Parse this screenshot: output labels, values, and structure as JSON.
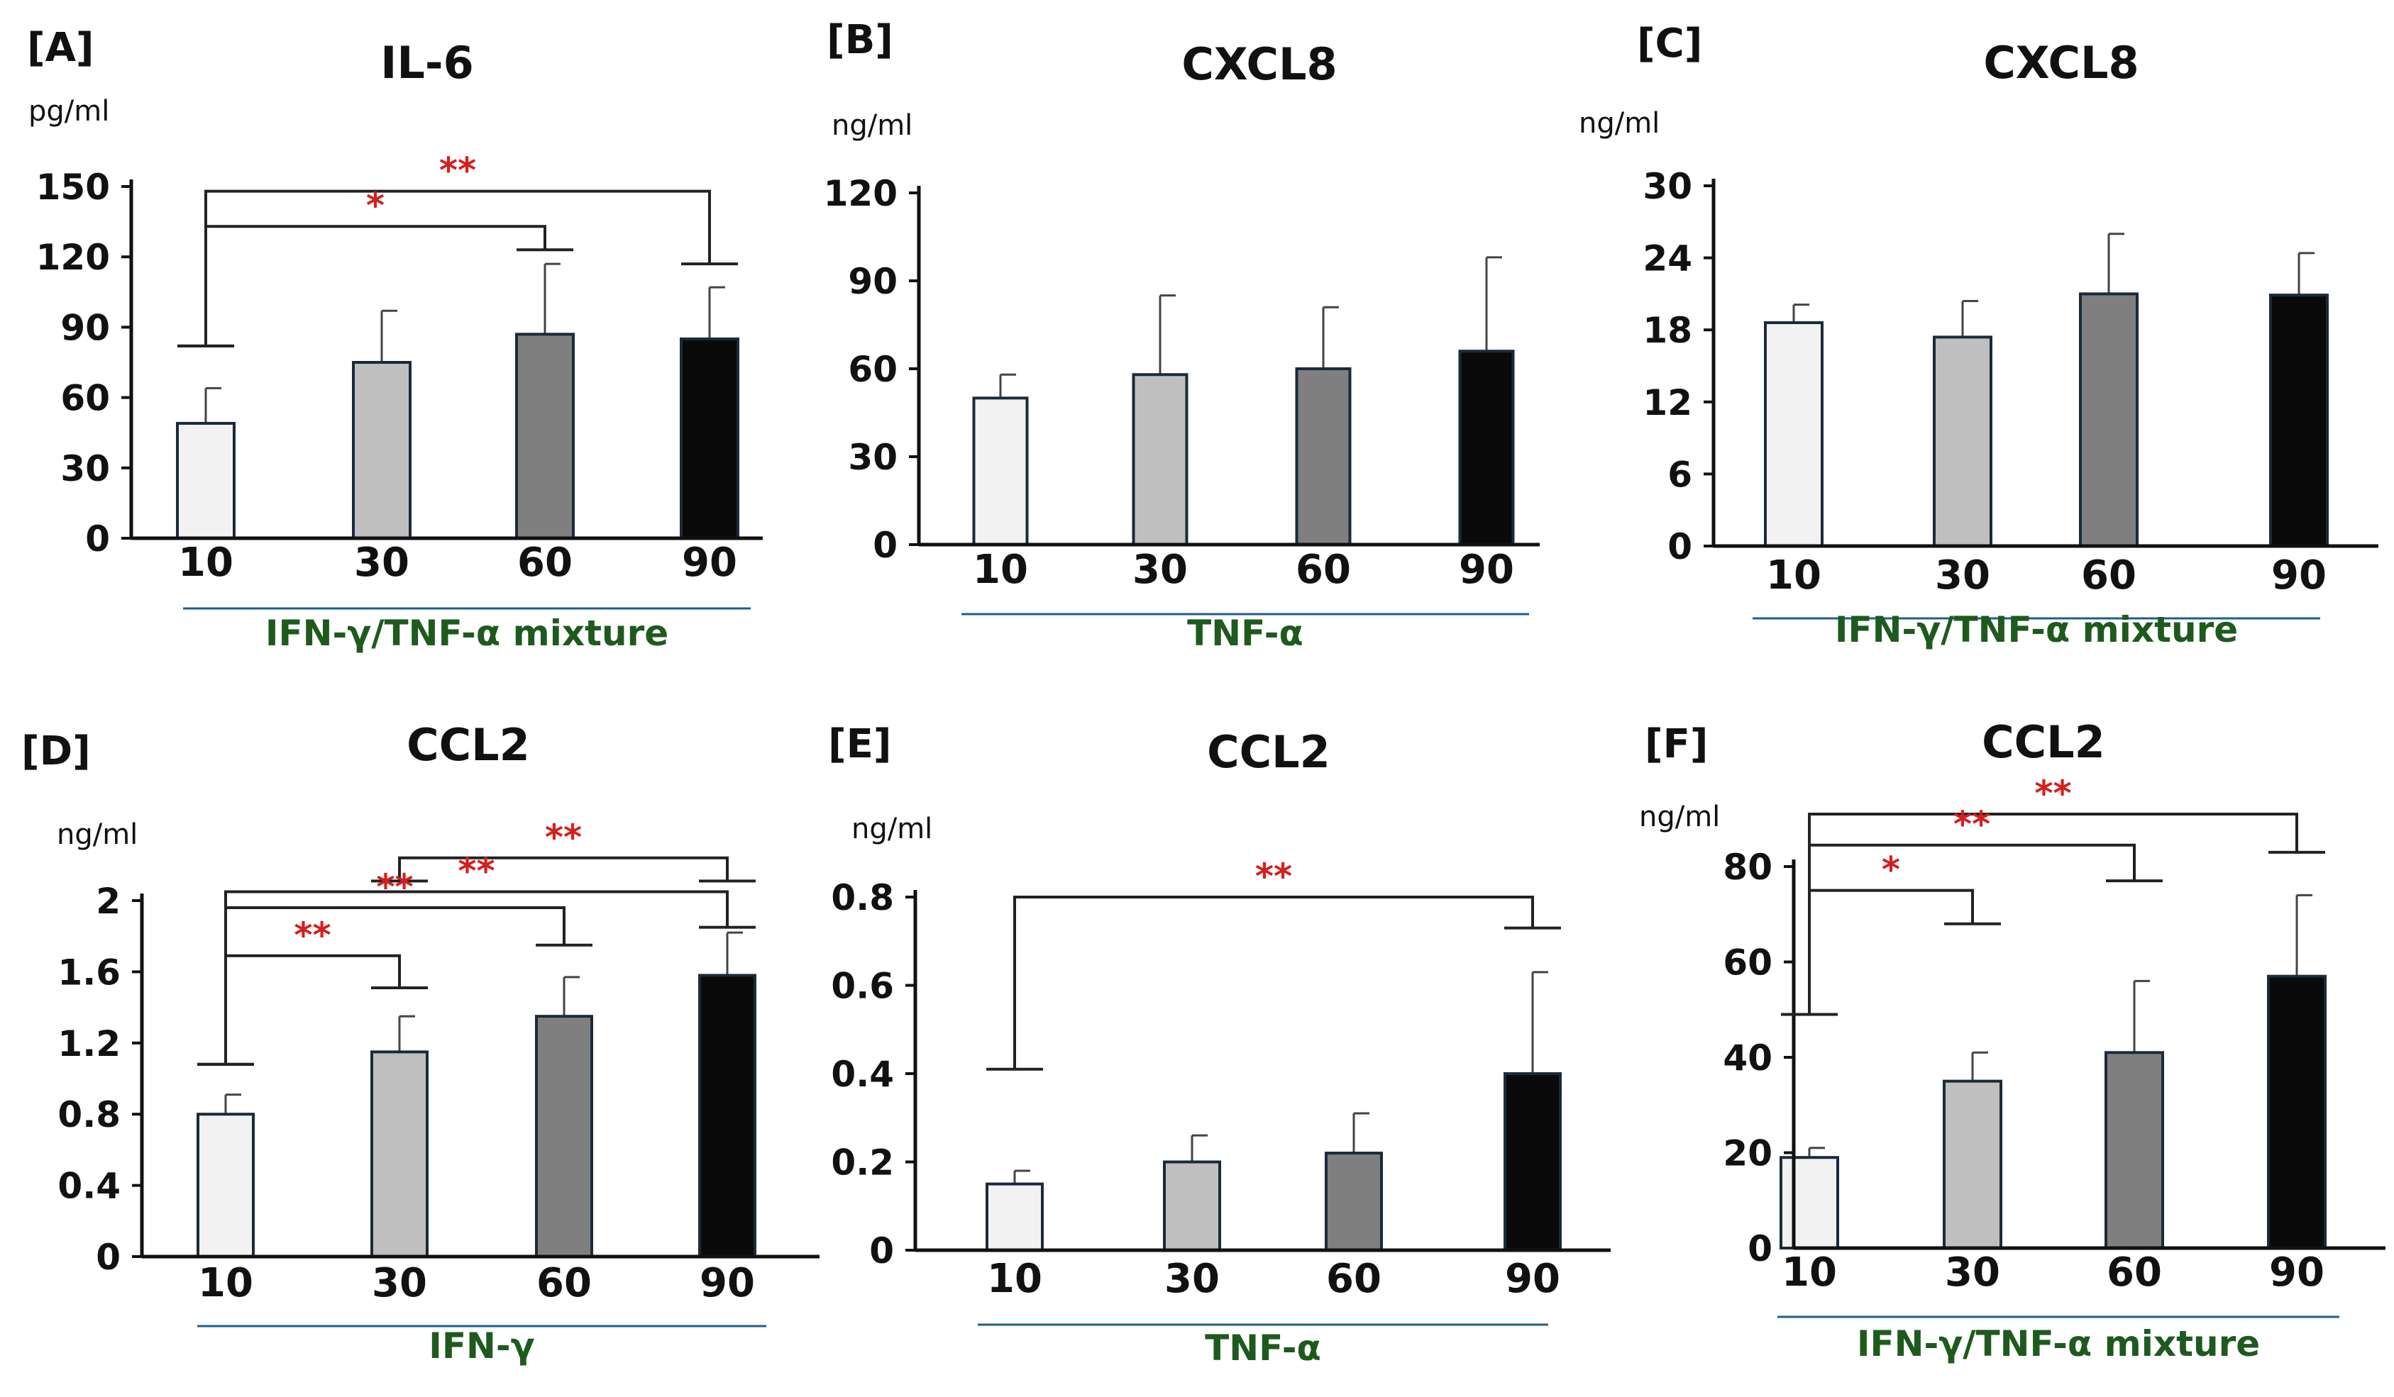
{
  "figure": {
    "panels_count": 6
  },
  "chart_data": [
    {
      "type": "bar",
      "panel_label": "[A]",
      "title": "IL-6",
      "unit": "pg/ml",
      "categories": [
        "10",
        "30",
        "60",
        "90"
      ],
      "values": [
        49,
        75,
        87,
        85
      ],
      "errors": [
        15,
        22,
        30,
        22
      ],
      "bar_colors": [
        "#f2f2f2",
        "#bfbfbf",
        "#7f7f7f",
        "#0a0a0a"
      ],
      "yticks": [
        "0",
        "30",
        "60",
        "90",
        "120",
        "150"
      ],
      "ylim": [
        0,
        150
      ],
      "xlabel": "IFN-γ/TNF-α mixture",
      "significance": [
        {
          "from": 0,
          "to": 3,
          "label": "**",
          "y_line": 148,
          "y_left_tick": 82,
          "y_right_tick": 117
        },
        {
          "from": 0,
          "to": 2,
          "label": "*",
          "y_line": 133,
          "y_left_tick": 82,
          "y_right_tick": 123
        }
      ]
    },
    {
      "type": "bar",
      "panel_label": "[B]",
      "title": "CXCL8",
      "unit": "ng/ml",
      "categories": [
        "10",
        "30",
        "60",
        "90"
      ],
      "values": [
        50,
        58,
        60,
        66
      ],
      "errors": [
        8,
        27,
        21,
        32
      ],
      "bar_colors": [
        "#f2f2f2",
        "#bfbfbf",
        "#7f7f7f",
        "#0a0a0a"
      ],
      "yticks": [
        "0",
        "30",
        "60",
        "90",
        "120"
      ],
      "ylim": [
        0,
        120
      ],
      "xlabel": "TNF-α",
      "significance": []
    },
    {
      "type": "bar",
      "panel_label": "[C]",
      "title": "CXCL8",
      "unit": "ng/ml",
      "categories": [
        "10",
        "30",
        "60",
        "90"
      ],
      "values": [
        18.6,
        17.4,
        21.0,
        20.9
      ],
      "errors": [
        1.5,
        3.0,
        5.0,
        3.5
      ],
      "bar_colors": [
        "#f2f2f2",
        "#bfbfbf",
        "#7f7f7f",
        "#0a0a0a"
      ],
      "yticks": [
        "0",
        "6",
        "12",
        "18",
        "24",
        "30"
      ],
      "ylim": [
        0,
        30
      ],
      "xlabel": "IFN-γ/TNF-α mixture",
      "significance": []
    },
    {
      "type": "bar",
      "panel_label": "[D]",
      "title": "CCL2",
      "unit": "ng/ml",
      "categories": [
        "10",
        "30",
        "60",
        "90"
      ],
      "values": [
        0.8,
        1.15,
        1.35,
        1.58
      ],
      "errors": [
        0.11,
        0.2,
        0.22,
        0.24
      ],
      "bar_colors": [
        "#f2f2f2",
        "#bfbfbf",
        "#7f7f7f",
        "#0a0a0a"
      ],
      "yticks": [
        "0",
        "0.4",
        "0.8",
        "1.2",
        "1.6",
        "2"
      ],
      "ylim": [
        0,
        2
      ],
      "xlabel": "IFN-γ",
      "significance": [
        {
          "from": 1,
          "to": 3,
          "label": "**",
          "y_line": 2.24,
          "y_left_tick": 2.11,
          "y_right_tick": 2.11
        },
        {
          "from": 0,
          "to": 3,
          "label": "**",
          "y_line": 2.05,
          "y_left_tick": 1.08,
          "y_right_tick": 1.85
        },
        {
          "from": 0,
          "to": 2,
          "label": "**",
          "y_line": 1.96,
          "y_left_tick": 1.08,
          "y_right_tick": 1.75
        },
        {
          "from": 0,
          "to": 1,
          "label": "**",
          "y_line": 1.69,
          "y_left_tick": 1.08,
          "y_right_tick": 1.51
        }
      ]
    },
    {
      "type": "bar",
      "panel_label": "[E]",
      "title": "CCL2",
      "unit": "ng/ml",
      "categories": [
        "10",
        "30",
        "60",
        "90"
      ],
      "values": [
        0.15,
        0.2,
        0.22,
        0.4
      ],
      "errors": [
        0.03,
        0.06,
        0.09,
        0.23
      ],
      "bar_colors": [
        "#f2f2f2",
        "#bfbfbf",
        "#7f7f7f",
        "#0a0a0a"
      ],
      "yticks": [
        "0",
        "0.2",
        "0.4",
        "0.6",
        "0.8"
      ],
      "ylim": [
        0,
        0.8
      ],
      "xlabel": "TNF-α",
      "significance": [
        {
          "from": 0,
          "to": 3,
          "label": "**",
          "y_line": 0.8,
          "y_left_tick": 0.41,
          "y_right_tick": 0.73
        }
      ]
    },
    {
      "type": "bar",
      "panel_label": "[F]",
      "title": "CCL2",
      "unit": "ng/ml",
      "categories": [
        "10",
        "30",
        "60",
        "90"
      ],
      "values": [
        19,
        35,
        41,
        57
      ],
      "errors": [
        2,
        6,
        15,
        17
      ],
      "bar_colors": [
        "#f2f2f2",
        "#bfbfbf",
        "#7f7f7f",
        "#0a0a0a"
      ],
      "yticks": [
        "0",
        "20",
        "40",
        "60",
        "80"
      ],
      "ylim": [
        0,
        80
      ],
      "xlabel": "IFN-γ/TNF-α mixture",
      "significance": [
        {
          "from": 0,
          "to": 3,
          "label": "**",
          "y_line": 91,
          "y_left_tick": 49,
          "y_right_tick": 83
        },
        {
          "from": 0,
          "to": 2,
          "label": "**",
          "y_line": 84.5,
          "y_left_tick": 49,
          "y_right_tick": 77
        },
        {
          "from": 0,
          "to": 1,
          "label": "*",
          "y_line": 75,
          "y_left_tick": 49,
          "y_right_tick": 68
        }
      ]
    }
  ]
}
